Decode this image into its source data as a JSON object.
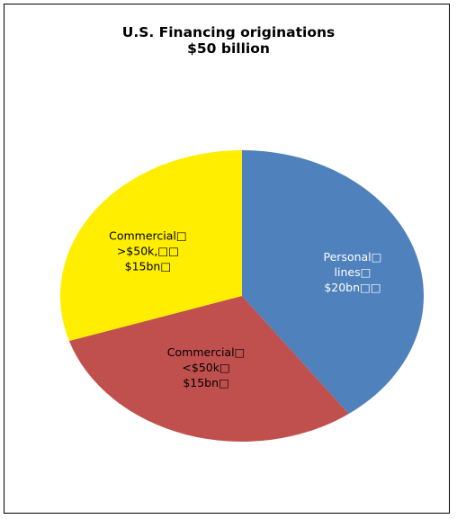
{
  "chart_data": {
    "type": "pie",
    "title": "U.S. Financing originations",
    "subtitle": "$50 billion",
    "slices": [
      {
        "name": "Personal lines",
        "value": 20,
        "label_lines": [
          "Personal□",
          "lines□",
          "$20bn□□"
        ],
        "color": "#4f81bd",
        "label_color": "#ffffff"
      },
      {
        "name": "Commercial <$50k",
        "value": 15,
        "label_lines": [
          "Commercial□",
          "<$50k□",
          "$15bn□"
        ],
        "color": "#c0504d",
        "label_color": "#000000"
      },
      {
        "name": "Commercial >$50k",
        "value": 15,
        "label_lines": [
          "Commercial□",
          ">$50k,□□",
          "$15bn□"
        ],
        "color": "#ffee00",
        "label_color": "#000000"
      }
    ],
    "start_angle_deg": 0,
    "direction": "clockwise",
    "legend": "none"
  }
}
